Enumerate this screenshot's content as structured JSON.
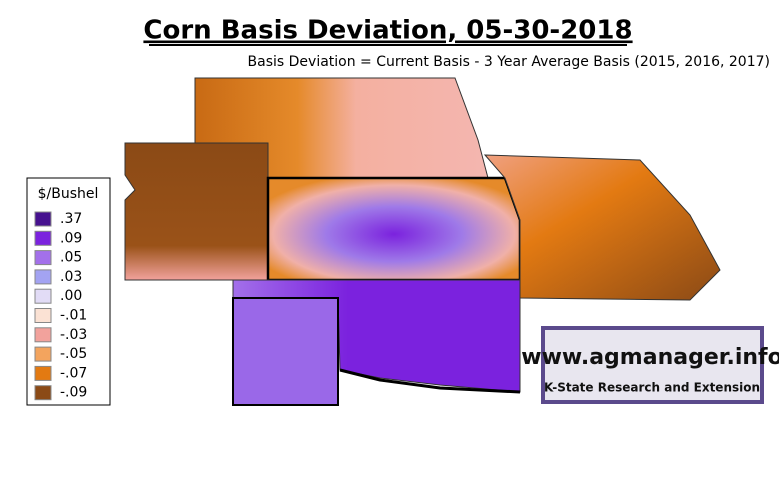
{
  "header": {
    "title": "Corn Basis Deviation, 05-30-2018",
    "subtitle": "Basis Deviation = Current Basis - 3 Year Average Basis (2015, 2016, 2017)"
  },
  "legend": {
    "title": "$/Bushel",
    "items": [
      {
        "label": ".37",
        "color": "#46118f"
      },
      {
        "label": ".09",
        "color": "#7b22de"
      },
      {
        "label": ".05",
        "color": "#a370ea"
      },
      {
        "label": ".03",
        "color": "#a3a3f2"
      },
      {
        "label": ".00",
        "color": "#e2dcf6"
      },
      {
        "label": "-.01",
        "color": "#fbe2d4"
      },
      {
        "label": "-.03",
        "color": "#f2a29c"
      },
      {
        "label": "-.05",
        "color": "#f3a45e"
      },
      {
        "label": "-.07",
        "color": "#e37a12"
      },
      {
        "label": "-.09",
        "color": "#8b4a16"
      }
    ]
  },
  "logo": {
    "url": "www.agmanager.info",
    "org": "K-State Research and Extension"
  }
}
